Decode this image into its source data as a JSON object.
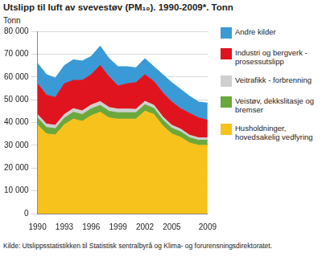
{
  "chart_data": {
    "type": "area",
    "title": "Utslipp til luft av svevestøv (PM₁₀). 1990-2009*. Tonn",
    "y_label": "Tonn",
    "source": "Kilde: Utslippsstatistikken til Statistisk sentralbyrå og Klima- og forurensningsdirektoratet.",
    "categories": [
      "1990",
      null,
      null,
      "1993",
      null,
      null,
      "1996",
      null,
      null,
      "1999",
      null,
      null,
      "2002",
      null,
      null,
      "2005",
      null,
      null,
      null,
      "2009"
    ],
    "stacked": true,
    "legend": "right",
    "grid": true,
    "ylim": [
      0,
      80000
    ],
    "yticks": [
      0,
      {
        "value": 10000,
        "label": "10 000"
      },
      {
        "value": 20000,
        "label": "20 000"
      },
      {
        "value": 30000,
        "label": "30 000"
      },
      {
        "value": 40000,
        "label": "40 000"
      },
      {
        "value": 50000,
        "label": "50 000"
      },
      {
        "value": 60000,
        "label": "60 000"
      },
      {
        "value": 70000,
        "label": "70 000"
      },
      {
        "value": 80000,
        "label": "80 000"
      }
    ],
    "series": [
      {
        "name": "Husholdninger, hovedsakelig vedfyring",
        "color": "#f7c21b",
        "values": [
          39000,
          35000,
          34500,
          39000,
          41500,
          40500,
          43000,
          44500,
          42000,
          41500,
          41500,
          41500,
          45000,
          43500,
          38500,
          35000,
          33500,
          31000,
          30000,
          30000
        ]
      },
      {
        "name": "Veistøv, dekkslitasje og bremser",
        "color": "#6aa83c",
        "values": [
          3000,
          2800,
          2800,
          2900,
          3000,
          3000,
          3000,
          3000,
          2900,
          2800,
          2800,
          2800,
          2800,
          2700,
          2600,
          2500,
          2400,
          2300,
          2200,
          2200
        ]
      },
      {
        "name": "Veitrafikk - forbrenning",
        "color": "#cfcfcf",
        "values": [
          1500,
          1500,
          1500,
          1600,
          1600,
          1600,
          1700,
          1700,
          1700,
          1600,
          1600,
          1500,
          1500,
          1400,
          1400,
          1300,
          1200,
          1100,
          1100,
          1000
        ]
      },
      {
        "name": "Industri og bergverk - prosessutslipp",
        "color": "#e0141e",
        "values": [
          13500,
          12700,
          12200,
          13500,
          12400,
          13400,
          13300,
          15800,
          13400,
          10100,
          11100,
          11700,
          11700,
          10400,
          10500,
          10200,
          8900,
          9600,
          8700,
          7800
        ]
      },
      {
        "name": "Andre kilder",
        "color": "#3a9ad5",
        "values": [
          9000,
          9000,
          8500,
          8000,
          9000,
          8500,
          8000,
          8500,
          8000,
          8500,
          7500,
          6500,
          7000,
          6500,
          8000,
          8500,
          8500,
          7500,
          7000,
          7500
        ]
      }
    ]
  }
}
